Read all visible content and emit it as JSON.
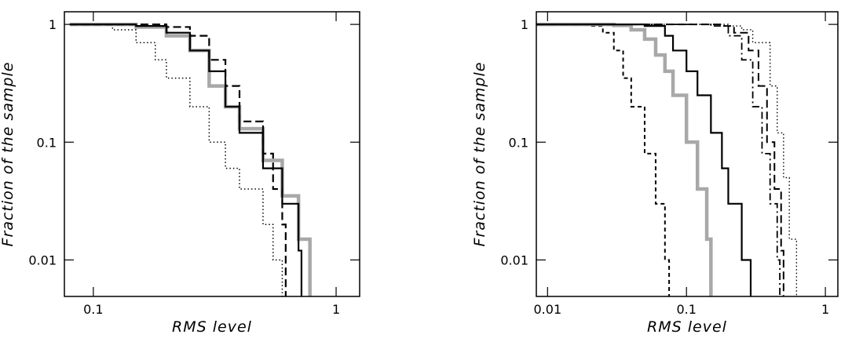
{
  "chart_data": [
    {
      "type": "line",
      "xlabel": "RMS level",
      "ylabel": "Fraction of the sample",
      "xlog": true,
      "ylog": true,
      "xlim": [
        0.076,
        1.25
      ],
      "ylim": [
        0.0049,
        1.28
      ],
      "xticks": [
        0.1,
        1
      ],
      "yticks": [
        1,
        0.1,
        0.01
      ],
      "series": [
        {
          "color": "#a8a8a8",
          "style": "solid",
          "width": 4.5,
          "x": [
            0.08,
            0.15,
            0.2,
            0.25,
            0.3,
            0.35,
            0.4,
            0.5,
            0.6,
            0.7,
            0.78
          ],
          "values": [
            1,
            0.95,
            0.8,
            0.6,
            0.3,
            0.2,
            0.13,
            0.07,
            0.035,
            0.015,
            0.0049
          ]
        },
        {
          "color": "#000000",
          "style": "solid",
          "width": 2.2,
          "x": [
            0.08,
            0.15,
            0.2,
            0.25,
            0.3,
            0.35,
            0.4,
            0.5,
            0.6,
            0.7,
            0.72
          ],
          "values": [
            1,
            0.97,
            0.85,
            0.6,
            0.4,
            0.2,
            0.12,
            0.06,
            0.03,
            0.012,
            0.0049
          ]
        },
        {
          "color": "#000000",
          "style": "dashed",
          "width": 2.2,
          "x": [
            0.08,
            0.2,
            0.25,
            0.3,
            0.35,
            0.4,
            0.5,
            0.55,
            0.6,
            0.62
          ],
          "values": [
            1,
            0.95,
            0.8,
            0.5,
            0.3,
            0.15,
            0.08,
            0.04,
            0.02,
            0.0049
          ]
        },
        {
          "color": "#000000",
          "style": "dotted",
          "width": 1.5,
          "x": [
            0.08,
            0.12,
            0.15,
            0.18,
            0.2,
            0.25,
            0.3,
            0.35,
            0.4,
            0.5,
            0.55,
            0.6
          ],
          "values": [
            1,
            0.9,
            0.7,
            0.5,
            0.35,
            0.2,
            0.1,
            0.06,
            0.04,
            0.02,
            0.01,
            0.0049
          ]
        }
      ]
    },
    {
      "type": "line",
      "xlabel": "RMS level",
      "ylabel": "Fraction of the sample",
      "xlog": true,
      "ylog": true,
      "xlim": [
        0.0083,
        1.23
      ],
      "ylim": [
        0.0049,
        1.28
      ],
      "xticks": [
        0.01,
        0.1,
        1
      ],
      "yticks": [
        1,
        0.1,
        0.01
      ],
      "series": [
        {
          "color": "#000000",
          "style": "shortdash",
          "width": 2,
          "x": [
            0.0083,
            0.02,
            0.025,
            0.03,
            0.035,
            0.04,
            0.05,
            0.06,
            0.07,
            0.075
          ],
          "values": [
            1,
            0.97,
            0.85,
            0.6,
            0.35,
            0.2,
            0.08,
            0.03,
            0.01,
            0.0049
          ]
        },
        {
          "color": "#a8a8a8",
          "style": "solid",
          "width": 4.5,
          "x": [
            0.0083,
            0.03,
            0.04,
            0.05,
            0.06,
            0.07,
            0.08,
            0.1,
            0.12,
            0.14,
            0.15
          ],
          "values": [
            1,
            0.98,
            0.9,
            0.75,
            0.55,
            0.4,
            0.25,
            0.1,
            0.04,
            0.015,
            0.0049
          ]
        },
        {
          "color": "#000000",
          "style": "solid",
          "width": 2.2,
          "x": [
            0.0083,
            0.05,
            0.07,
            0.08,
            0.1,
            0.12,
            0.15,
            0.18,
            0.2,
            0.25,
            0.29
          ],
          "values": [
            1,
            0.97,
            0.8,
            0.6,
            0.4,
            0.25,
            0.12,
            0.06,
            0.03,
            0.01,
            0.0049
          ]
        },
        {
          "color": "#000000",
          "style": "dashdot",
          "width": 1.8,
          "x": [
            0.0083,
            0.15,
            0.2,
            0.25,
            0.3,
            0.35,
            0.4,
            0.45,
            0.47
          ],
          "values": [
            1,
            0.97,
            0.8,
            0.5,
            0.2,
            0.08,
            0.03,
            0.01,
            0.0049
          ]
        },
        {
          "color": "#000000",
          "style": "dashed",
          "width": 2,
          "x": [
            0.0083,
            0.18,
            0.22,
            0.28,
            0.33,
            0.38,
            0.43,
            0.48,
            0.5
          ],
          "values": [
            1,
            0.97,
            0.85,
            0.6,
            0.3,
            0.1,
            0.04,
            0.012,
            0.0049
          ]
        },
        {
          "color": "#000000",
          "style": "dotted",
          "width": 1.4,
          "x": [
            0.0083,
            0.2,
            0.25,
            0.3,
            0.4,
            0.45,
            0.5,
            0.55,
            0.62
          ],
          "values": [
            1,
            0.97,
            0.9,
            0.7,
            0.3,
            0.12,
            0.05,
            0.015,
            0.0049
          ]
        }
      ]
    }
  ]
}
